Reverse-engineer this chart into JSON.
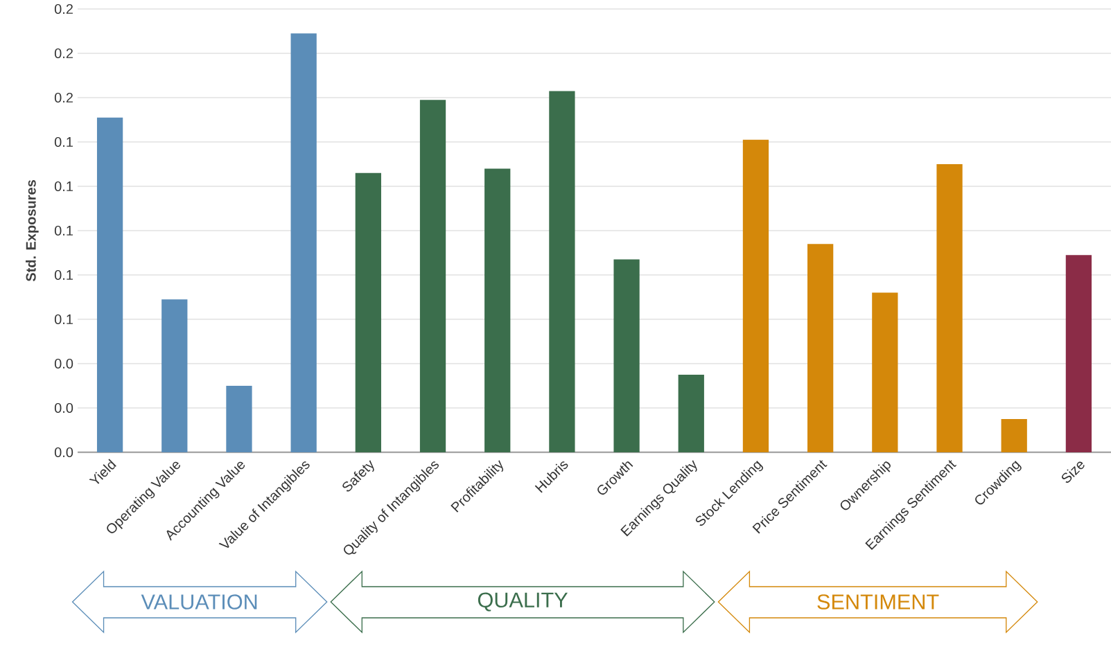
{
  "chart_data": {
    "type": "bar",
    "ylabel": "Std. Exposures",
    "categories": [
      "Yield",
      "Operating Value",
      "Accounting Value",
      "Value of Intangibles",
      "Safety",
      "Quality of Intangibles",
      "Profitability",
      "Hubris",
      "Growth",
      "Earnings Quality",
      "Stock Lending",
      "Price Sentiment",
      "Ownership",
      "Earnings Sentiment",
      "Crowding",
      "Size"
    ],
    "values": [
      0.151,
      0.069,
      0.03,
      0.189,
      0.126,
      0.159,
      0.128,
      0.163,
      0.087,
      0.035,
      0.141,
      0.094,
      0.072,
      0.13,
      0.015,
      0.089
    ],
    "colors": [
      "#5b8db8",
      "#5b8db8",
      "#5b8db8",
      "#5b8db8",
      "#3b6e4c",
      "#3b6e4c",
      "#3b6e4c",
      "#3b6e4c",
      "#3b6e4c",
      "#3b6e4c",
      "#d4880a",
      "#d4880a",
      "#d4880a",
      "#d4880a",
      "#d4880a",
      "#8b2c47"
    ],
    "ylim": [
      0,
      0.2
    ],
    "yticks": [
      {
        "value": 0,
        "label": "0.0"
      },
      {
        "value": 0.02,
        "label": "0.0"
      },
      {
        "value": 0.04,
        "label": "0.0"
      },
      {
        "value": 0.06,
        "label": "0.1"
      },
      {
        "value": 0.08,
        "label": "0.1"
      },
      {
        "value": 0.1,
        "label": "0.1"
      },
      {
        "value": 0.12,
        "label": "0.1"
      },
      {
        "value": 0.14,
        "label": "0.1"
      },
      {
        "value": 0.16,
        "label": "0.2"
      },
      {
        "value": 0.18,
        "label": "0.2"
      },
      0.2
    ],
    "grid": "y",
    "annotations": [
      "VALUATION",
      "QUALITY",
      "SENTIMENT"
    ]
  }
}
